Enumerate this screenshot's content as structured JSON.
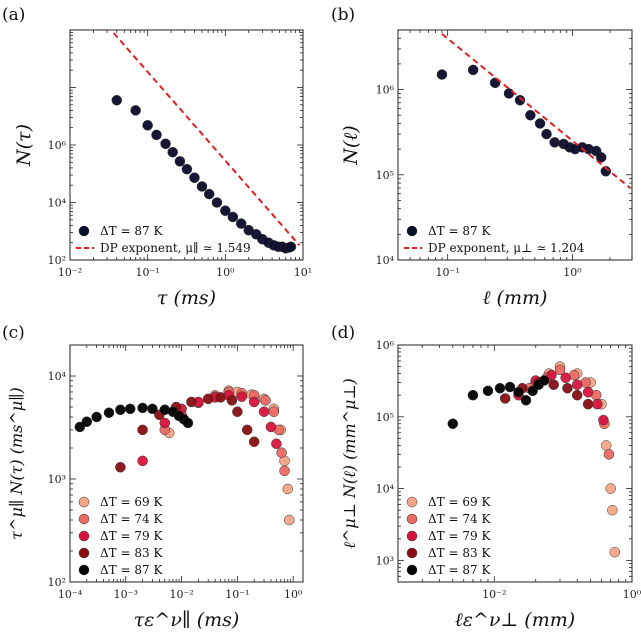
{
  "chart_data": [
    {
      "panel": "(a)",
      "type": "scatter",
      "xlabel": "τ (ms)",
      "ylabel": "N(τ)",
      "xscale": "log",
      "yscale": "log",
      "xlim": [
        0.01,
        10
      ],
      "ylim": [
        100,
        1000000
      ],
      "xticks": [
        "10⁻²",
        "10⁻¹",
        "10⁰",
        "10¹"
      ],
      "yticks": [
        "10²",
        "10⁴",
        "10⁶"
      ],
      "legend_position": "bottom-left",
      "series": [
        {
          "name": "ΔT = 87 K",
          "color": "#0b0b2a",
          "x": [
            0.04,
            0.07,
            0.1,
            0.13,
            0.17,
            0.21,
            0.26,
            0.32,
            0.4,
            0.5,
            0.62,
            0.78,
            1.0,
            1.25,
            1.6,
            2.0,
            2.5,
            3.0,
            3.6,
            4.2,
            4.8,
            5.4,
            6.0,
            6.6,
            7.0
          ],
          "y": [
            60000,
            40000,
            22000,
            15000,
            10500,
            7500,
            5200,
            3800,
            2700,
            1900,
            1400,
            1000,
            720,
            560,
            430,
            330,
            280,
            230,
            200,
            180,
            170,
            170,
            160,
            165,
            170
          ]
        },
        {
          "name": "DP exponent, μ∥ ≃ 1.549",
          "color": "#e02020",
          "type": "line",
          "dashed": true,
          "x": [
            0.03,
            9
          ],
          "y": [
            1200000,
            180
          ]
        }
      ]
    },
    {
      "panel": "(b)",
      "type": "scatter",
      "xlabel": "ℓ (mm)",
      "ylabel": "N(ℓ)",
      "xscale": "log",
      "yscale": "log",
      "xlim": [
        0.04,
        3
      ],
      "ylim": [
        10000,
        5000000
      ],
      "xticks": [
        "10⁻¹",
        "10⁰"
      ],
      "yticks": [
        "10⁴",
        "10⁵",
        "10⁶"
      ],
      "legend_position": "bottom-left",
      "series": [
        {
          "name": "ΔT = 87 K",
          "color": "#0b0b2a",
          "x": [
            0.09,
            0.16,
            0.24,
            0.31,
            0.38,
            0.46,
            0.55,
            0.62,
            0.72,
            0.85,
            0.95,
            1.05,
            1.2,
            1.35,
            1.55,
            1.7,
            1.85
          ],
          "y": [
            1500000,
            1700000,
            1200000,
            900000,
            750000,
            500000,
            400000,
            300000,
            240000,
            230000,
            210000,
            200000,
            210000,
            200000,
            190000,
            160000,
            110000
          ]
        },
        {
          "name": "DP exponent, μ⊥ ≃ 1.204",
          "color": "#e02020",
          "type": "line",
          "dashed": true,
          "x": [
            0.09,
            2.9
          ],
          "y": [
            4500000,
            70000
          ]
        }
      ]
    },
    {
      "panel": "(c)",
      "type": "scatter",
      "xlabel": "τε^ν∥ (ms)",
      "ylabel": "τ^μ∥ N(τ) (ms^μ∥)",
      "xscale": "log",
      "yscale": "log",
      "xlim": [
        0.0001,
        1.5
      ],
      "ylim": [
        100,
        20000
      ],
      "xticks": [
        "10⁻⁴",
        "10⁻³",
        "10⁻²",
        "10⁻¹",
        "10⁰"
      ],
      "yticks": [
        "10²",
        "10³",
        "10⁴"
      ],
      "legend_position": "bottom-left",
      "series": [
        {
          "name": "ΔT = 69 K",
          "color": "#f7a585",
          "x": [
            0.006,
            0.01,
            0.02,
            0.04,
            0.07,
            0.1,
            0.18,
            0.3,
            0.45,
            0.6,
            0.7,
            0.8,
            0.85
          ],
          "y": [
            2800,
            4200,
            5500,
            6500,
            7200,
            7000,
            6600,
            6000,
            4800,
            3000,
            1500,
            800,
            400
          ]
        },
        {
          "name": "ΔT = 74 K",
          "color": "#ec6a64",
          "x": [
            0.005,
            0.01,
            0.02,
            0.04,
            0.07,
            0.12,
            0.2,
            0.32,
            0.45,
            0.55,
            0.62,
            0.7
          ],
          "y": [
            3000,
            4200,
            5500,
            6300,
            7000,
            6800,
            6500,
            5800,
            4500,
            3000,
            1800,
            1200
          ]
        },
        {
          "name": "ΔT = 79 K",
          "color": "#d7143c",
          "x": [
            0.002,
            0.005,
            0.01,
            0.02,
            0.04,
            0.07,
            0.12,
            0.2,
            0.3,
            0.4,
            0.5
          ],
          "y": [
            1500,
            3500,
            4800,
            5600,
            6200,
            6500,
            6300,
            5600,
            4500,
            3200,
            2200
          ]
        },
        {
          "name": "ΔT = 83 K",
          "color": "#8a0f12",
          "x": [
            0.0008,
            0.002,
            0.004,
            0.008,
            0.015,
            0.03,
            0.05,
            0.08,
            0.1,
            0.15,
            0.2
          ],
          "y": [
            1300,
            3000,
            4200,
            5000,
            5600,
            6000,
            6200,
            5800,
            4500,
            3000,
            2300
          ]
        },
        {
          "name": "ΔT = 87 K",
          "color": "#000000",
          "x": [
            0.00015,
            0.0002,
            0.0003,
            0.0005,
            0.0008,
            0.0012,
            0.002,
            0.003,
            0.005,
            0.007,
            0.009,
            0.011,
            0.013
          ],
          "y": [
            3200,
            3600,
            4000,
            4400,
            4700,
            4800,
            4900,
            4800,
            4700,
            4500,
            4100,
            3800,
            3500
          ]
        }
      ]
    },
    {
      "panel": "(d)",
      "type": "scatter",
      "xlabel": "ℓε^ν⊥ (mm)",
      "ylabel": "ℓ^μ⊥ N(ℓ) (mm^μ⊥)",
      "xscale": "log",
      "yscale": "log",
      "xlim": [
        0.002,
        0.1
      ],
      "ylim": [
        500,
        1000000
      ],
      "xticks": [
        "10⁻²",
        "10⁰"
      ],
      "yticks": [
        "10³",
        "10⁴",
        "10⁵",
        "10⁶"
      ],
      "legend_position": "bottom-left",
      "series": [
        {
          "name": "ΔT = 69 K",
          "color": "#f7a585",
          "x": [
            0.02,
            0.025,
            0.03,
            0.04,
            0.05,
            0.06,
            0.065,
            0.07,
            0.072,
            0.075
          ],
          "y": [
            300000,
            400000,
            500000,
            400000,
            300000,
            150000,
            40000,
            10000,
            5000,
            1300
          ]
        },
        {
          "name": "ΔT = 74 K",
          "color": "#ec6a64",
          "x": [
            0.018,
            0.024,
            0.03,
            0.038,
            0.046,
            0.055,
            0.063,
            0.068
          ],
          "y": [
            250000,
            350000,
            450000,
            380000,
            300000,
            200000,
            80000,
            30000
          ]
        },
        {
          "name": "ΔT = 79 K",
          "color": "#d7143c",
          "x": [
            0.015,
            0.02,
            0.026,
            0.033,
            0.04,
            0.048,
            0.056,
            0.062
          ],
          "y": [
            200000,
            320000,
            380000,
            350000,
            280000,
            220000,
            150000,
            90000
          ]
        },
        {
          "name": "ΔT = 83 K",
          "color": "#8a0f12",
          "x": [
            0.012,
            0.016,
            0.021,
            0.027,
            0.034,
            0.04,
            0.048
          ],
          "y": [
            180000,
            250000,
            300000,
            280000,
            250000,
            200000,
            150000
          ]
        },
        {
          "name": "ΔT = 87 K",
          "color": "#000000",
          "x": [
            0.005,
            0.007,
            0.009,
            0.011,
            0.013,
            0.015,
            0.017,
            0.019,
            0.021,
            0.023
          ],
          "y": [
            80000,
            200000,
            230000,
            250000,
            260000,
            220000,
            170000,
            230000,
            280000,
            320000
          ]
        }
      ]
    }
  ]
}
